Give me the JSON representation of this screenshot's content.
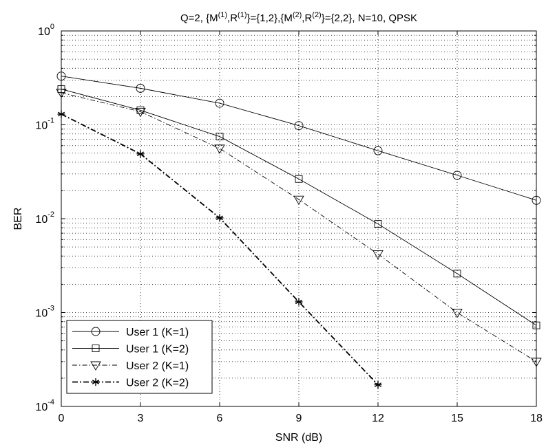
{
  "chart_data": {
    "type": "line",
    "title_parts": [
      {
        "text": "Q=2, {M",
        "sup": false
      },
      {
        "text": "(1)",
        "sup": true
      },
      {
        "text": ",R",
        "sup": false
      },
      {
        "text": "(1)",
        "sup": true
      },
      {
        "text": "}={1,2},{M",
        "sup": false
      },
      {
        "text": "(2)",
        "sup": true
      },
      {
        "text": ",R",
        "sup": false
      },
      {
        "text": "(2)",
        "sup": true
      },
      {
        "text": "}={2,2}, N=10, QPSK",
        "sup": false
      }
    ],
    "xlabel": "SNR (dB)",
    "ylabel": "BER",
    "xlim": [
      0,
      18
    ],
    "ylim": [
      0.0001,
      1
    ],
    "yscale": "log",
    "grid": true,
    "legend_position": "bottom-left",
    "x_ticks": [
      0,
      3,
      6,
      9,
      12,
      15,
      18
    ],
    "x_tick_labels": [
      "0",
      "3",
      "6",
      "9",
      "12",
      "15",
      "18"
    ],
    "y_ticks": [
      {
        "value": 1,
        "base": "10",
        "exp": "0"
      },
      {
        "value": 0.1,
        "base": "10",
        "exp": "-1"
      },
      {
        "value": 0.01,
        "base": "10",
        "exp": "-2"
      },
      {
        "value": 0.001,
        "base": "10",
        "exp": "-3"
      },
      {
        "value": 0.0001,
        "base": "10",
        "exp": "-4"
      }
    ],
    "series": [
      {
        "name": "User 1 (K=1)",
        "marker": "circle",
        "line": "solid",
        "color": "#000000",
        "x": [
          0,
          3,
          6,
          9,
          12,
          15,
          18
        ],
        "y": [
          0.33,
          0.245,
          0.17,
          0.098,
          0.053,
          0.029,
          0.0157
        ]
      },
      {
        "name": "User 1 (K=2)",
        "marker": "square",
        "line": "solid",
        "color": "#000000",
        "x": [
          0,
          3,
          6,
          9,
          12,
          15,
          18
        ],
        "y": [
          0.24,
          0.143,
          0.075,
          0.0265,
          0.0088,
          0.0026,
          0.00073
        ]
      },
      {
        "name": "User 2 (K=1)",
        "marker": "triangle-down",
        "line": "dashdot",
        "color": "#000000",
        "x": [
          0,
          3,
          6,
          9,
          12,
          15,
          18
        ],
        "y": [
          0.22,
          0.138,
          0.056,
          0.016,
          0.0042,
          0.001,
          0.0003
        ]
      },
      {
        "name": "User 2 (K=2)",
        "marker": "asterisk",
        "line": "dashdot-thick",
        "color": "#000000",
        "x": [
          0,
          3,
          6,
          9,
          12
        ],
        "y": [
          0.13,
          0.049,
          0.0102,
          0.0013,
          0.00017
        ]
      }
    ]
  }
}
